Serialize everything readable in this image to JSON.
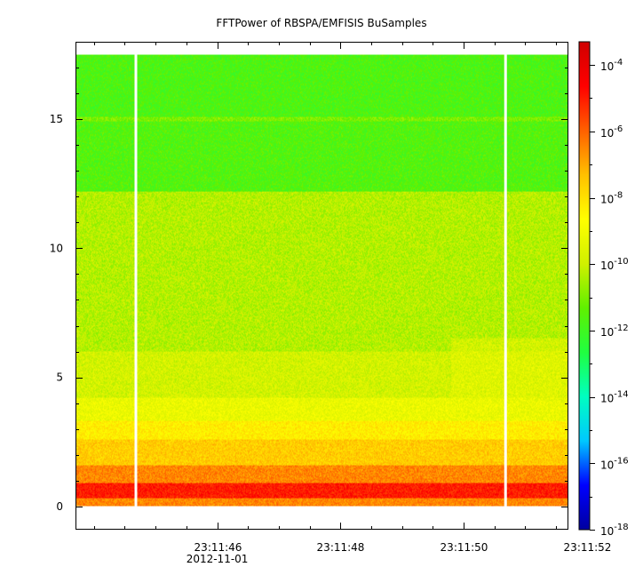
{
  "chart_data": {
    "type": "heatmap",
    "title": "FFTPower of RBSPA/EMFISIS  BuSamples",
    "xlabel": "",
    "ylabel": "",
    "x_ticks": [
      {
        "seconds": 46,
        "label": "23:11:46"
      },
      {
        "seconds": 48,
        "label": "23:11:48"
      },
      {
        "seconds": 50,
        "label": "23:11:50"
      },
      {
        "seconds": 52,
        "label": "23:11:52"
      }
    ],
    "x_minor_seconds": [
      44.0,
      44.5,
      45.0,
      45.5,
      46.0,
      46.5,
      47.0,
      47.5,
      48.0,
      48.5,
      49.0,
      49.5,
      50.0,
      50.5,
      51.0,
      51.5,
      52.0
    ],
    "x_date_label": "2012-11-01",
    "xlim_seconds": [
      43.7,
      51.7
    ],
    "y_ticks": [
      0,
      5,
      10,
      15
    ],
    "ylim": [
      -0.9,
      18.0
    ],
    "data_ymax": 17.5,
    "colorbar": {
      "scale": "log",
      "range_exp": [
        -18,
        -3.3
      ],
      "tick_exponents": [
        -4,
        -6,
        -8,
        -10,
        -12,
        -14,
        -16,
        -18
      ],
      "tick_base": "10",
      "tick_exp_labels": [
        "-4",
        "-6",
        "-8",
        "-10",
        "-12",
        "-14",
        "-16",
        "-18"
      ],
      "colormap": [
        "#0000a0",
        "#0000ff",
        "#00c8ff",
        "#00ffc0",
        "#20ff40",
        "#60f000",
        "#d0f000",
        "#ffff00",
        "#ffc000",
        "#ff6000",
        "#ff0000",
        "#d00000"
      ]
    },
    "gap_seconds": [
      44.68,
      50.68
    ],
    "frequency_bands": [
      {
        "y_from": 0.0,
        "y_to": 0.3,
        "log_power": -6.5
      },
      {
        "y_from": 0.3,
        "y_to": 0.9,
        "log_power": -5.0
      },
      {
        "y_from": 0.9,
        "y_to": 1.6,
        "log_power": -6.5
      },
      {
        "y_from": 1.6,
        "y_to": 2.6,
        "log_power": -7.6
      },
      {
        "y_from": 2.6,
        "y_to": 3.3,
        "log_power": -8.3
      },
      {
        "y_from": 3.3,
        "y_to": 4.2,
        "log_power": -9.2
      },
      {
        "y_from": 4.2,
        "y_to": 6.0,
        "log_power": -9.8
      },
      {
        "y_from": 6.0,
        "y_to": 12.2,
        "log_power": -10.3
      },
      {
        "y_from": 12.2,
        "y_to": 14.9,
        "log_power": -11.6
      },
      {
        "y_from": 14.9,
        "y_to": 15.1,
        "log_power": -11.0
      },
      {
        "y_from": 15.1,
        "y_to": 17.5,
        "log_power": -11.7
      }
    ],
    "enhancement": {
      "x_from_seconds": 49.8,
      "x_to_seconds": 51.7,
      "y_from": 4.0,
      "y_to": 6.5,
      "log_power": -9.3
    }
  }
}
